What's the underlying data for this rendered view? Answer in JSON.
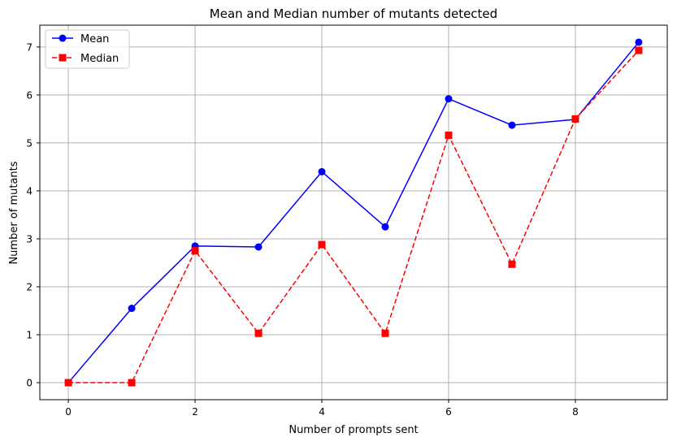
{
  "chart_data": {
    "type": "line",
    "title": "Mean and Median number of mutants detected",
    "xlabel": "Number of prompts sent",
    "ylabel": "Number of mutants",
    "x": [
      0,
      1,
      2,
      3,
      4,
      5,
      6,
      7,
      8,
      9
    ],
    "xlim": [
      -0.45,
      9.45
    ],
    "ylim": [
      -0.355,
      7.455
    ],
    "xticks": [
      0,
      2,
      4,
      6,
      8
    ],
    "yticks": [
      0,
      1,
      2,
      3,
      4,
      5,
      6,
      7
    ],
    "xtick_labels": [
      "0",
      "2",
      "4",
      "6",
      "8"
    ],
    "ytick_labels": [
      "0",
      "1",
      "2",
      "3",
      "4",
      "5",
      "6",
      "7"
    ],
    "grid": true,
    "legend_position": "upper-left",
    "series": [
      {
        "name": "Mean",
        "values": [
          0.0,
          1.55,
          2.85,
          2.83,
          4.4,
          3.25,
          5.92,
          5.37,
          5.49,
          7.1
        ],
        "color": "#0000ff",
        "marker": "circle",
        "line_style": "solid"
      },
      {
        "name": "Median",
        "values": [
          0.0,
          0.0,
          2.75,
          1.03,
          2.88,
          1.03,
          5.16,
          2.47,
          5.5,
          6.93
        ],
        "color": "#ff0000",
        "marker": "square",
        "line_style": "dashed"
      }
    ]
  }
}
